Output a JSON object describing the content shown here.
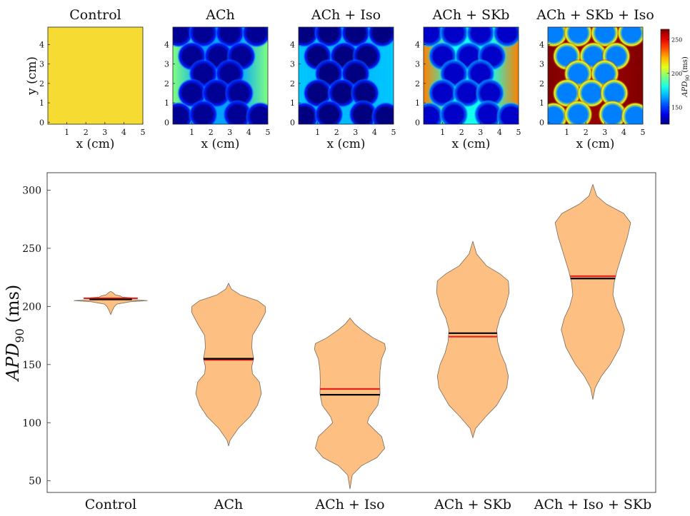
{
  "colors": {
    "violin_fill": "#fdbf82",
    "violin_edge": "#7a6a5a",
    "median_line": "#000000",
    "mean_line": "#e8221b",
    "axis": "#333333",
    "control_map": "#f6dc32"
  },
  "colorbar": {
    "label": "APD90 (ms)",
    "ticks": [
      150,
      200,
      250
    ],
    "range": [
      125,
      265
    ],
    "colormap": "jet"
  },
  "chart_data": [
    {
      "type": "heatmap",
      "title": "Control",
      "xlabel": "x (cm)",
      "ylabel": "y (cm)",
      "xticks": [
        1,
        2,
        3,
        4,
        5
      ],
      "yticks": [
        0,
        1,
        2,
        3,
        4
      ],
      "xlim": [
        0,
        5
      ],
      "ylim": [
        -0.1,
        4.9
      ],
      "pattern": "uniform",
      "base_value": 207,
      "blob_value": 207,
      "edge_value": 207,
      "centers": []
    },
    {
      "type": "heatmap",
      "title": "ACh",
      "xlabel": "x (cm)",
      "ylabel": "",
      "xticks": [
        1,
        2,
        3,
        4,
        5
      ],
      "yticks": [
        0,
        1,
        2,
        3,
        4
      ],
      "xlim": [
        0,
        5
      ],
      "ylim": [
        -0.1,
        4.9
      ],
      "pattern": "regions",
      "base_value": 165,
      "blob_value": 128,
      "edge_value": 195,
      "centers": [
        [
          0.3,
          4.6
        ],
        [
          1.6,
          4.6
        ],
        [
          3.0,
          4.6
        ],
        [
          4.4,
          4.6
        ],
        [
          1.0,
          3.4
        ],
        [
          2.4,
          3.4
        ],
        [
          3.6,
          3.4
        ],
        [
          1.6,
          2.5
        ],
        [
          3.0,
          2.5
        ],
        [
          1.0,
          1.5
        ],
        [
          2.3,
          1.5
        ],
        [
          3.5,
          1.5
        ],
        [
          0.3,
          0.3
        ],
        [
          1.6,
          0.4
        ],
        [
          3.4,
          0.4
        ],
        [
          4.6,
          0.3
        ]
      ]
    },
    {
      "type": "heatmap",
      "title": "ACh + Iso",
      "xlabel": "x (cm)",
      "ylabel": "",
      "xticks": [
        1,
        2,
        3,
        4,
        5
      ],
      "yticks": [
        0,
        1,
        2,
        3,
        4
      ],
      "xlim": [
        0,
        5
      ],
      "ylim": [
        -0.1,
        4.9
      ],
      "pattern": "regions",
      "base_value": 168,
      "blob_value": 125,
      "edge_value": 170,
      "centers": [
        [
          0.3,
          4.6
        ],
        [
          1.6,
          4.6
        ],
        [
          3.0,
          4.6
        ],
        [
          4.4,
          4.6
        ],
        [
          1.0,
          3.4
        ],
        [
          2.4,
          3.4
        ],
        [
          3.6,
          3.4
        ],
        [
          1.6,
          2.5
        ],
        [
          3.0,
          2.5
        ],
        [
          1.0,
          1.5
        ],
        [
          2.3,
          1.5
        ],
        [
          3.5,
          1.5
        ],
        [
          0.3,
          0.3
        ],
        [
          1.6,
          0.4
        ],
        [
          3.4,
          0.4
        ],
        [
          4.6,
          0.3
        ]
      ]
    },
    {
      "type": "heatmap",
      "title": "ACh + SKb",
      "xlabel": "x (cm)",
      "ylabel": "",
      "xticks": [
        1,
        2,
        3,
        4,
        5
      ],
      "yticks": [
        0,
        1,
        2,
        3,
        4
      ],
      "xlim": [
        0,
        5
      ],
      "ylim": [
        -0.1,
        4.9
      ],
      "pattern": "regions",
      "base_value": 180,
      "blob_value": 135,
      "edge_value": 230,
      "centers": [
        [
          0.3,
          4.6
        ],
        [
          1.6,
          4.6
        ],
        [
          3.0,
          4.6
        ],
        [
          4.4,
          4.6
        ],
        [
          1.0,
          3.4
        ],
        [
          2.4,
          3.4
        ],
        [
          3.6,
          3.4
        ],
        [
          1.6,
          2.5
        ],
        [
          3.0,
          2.5
        ],
        [
          1.0,
          1.5
        ],
        [
          2.3,
          1.5
        ],
        [
          3.5,
          1.5
        ],
        [
          0.3,
          0.3
        ],
        [
          1.6,
          0.4
        ],
        [
          3.4,
          0.4
        ],
        [
          4.6,
          0.3
        ]
      ]
    },
    {
      "type": "heatmap",
      "title": "ACh + SKb + Iso",
      "xlabel": "x (cm)",
      "ylabel": "",
      "xticks": [
        1,
        2,
        3,
        4,
        5
      ],
      "yticks": [
        0,
        1,
        2,
        3,
        4
      ],
      "xlim": [
        0,
        5
      ],
      "ylim": [
        -0.1,
        4.9
      ],
      "pattern": "regions",
      "base_value": 262,
      "blob_value": 160,
      "edge_value": 265,
      "centers": [
        [
          0.3,
          4.6
        ],
        [
          1.6,
          4.6
        ],
        [
          3.0,
          4.6
        ],
        [
          4.4,
          4.6
        ],
        [
          1.0,
          3.4
        ],
        [
          2.4,
          3.4
        ],
        [
          3.6,
          3.4
        ],
        [
          1.6,
          2.5
        ],
        [
          3.0,
          2.5
        ],
        [
          1.0,
          1.5
        ],
        [
          2.3,
          1.5
        ],
        [
          3.5,
          1.5
        ],
        [
          0.3,
          0.3
        ],
        [
          1.6,
          0.4
        ],
        [
          3.4,
          0.4
        ],
        [
          4.6,
          0.3
        ]
      ]
    },
    {
      "type": "violin",
      "title": "",
      "xlabel": "",
      "ylabel": "APD90 (ms)",
      "ylim": [
        40,
        315
      ],
      "yticks": [
        50,
        100,
        150,
        200,
        250,
        300
      ],
      "categories": [
        "Control",
        "ACh",
        "ACh + Iso",
        "ACh + SKb",
        "ACh + Iso + SKb"
      ],
      "series": [
        {
          "category": "Control",
          "median": 206,
          "mean": 207,
          "profile": [
            [
              193,
              0.0
            ],
            [
              197,
              0.05
            ],
            [
              200,
              0.1
            ],
            [
              202,
              0.16
            ],
            [
              204,
              0.5
            ],
            [
              205,
              0.95
            ],
            [
              206,
              0.35
            ],
            [
              207,
              0.7
            ],
            [
              208,
              0.3
            ],
            [
              209,
              0.25
            ],
            [
              210,
              0.12
            ],
            [
              212,
              0.05
            ],
            [
              213,
              0.0
            ]
          ]
        },
        {
          "category": "ACh",
          "median": 155,
          "mean": 154,
          "profile": [
            [
              80,
              0.0
            ],
            [
              85,
              0.04
            ],
            [
              95,
              0.25
            ],
            [
              105,
              0.55
            ],
            [
              115,
              0.75
            ],
            [
              125,
              0.85
            ],
            [
              135,
              0.8
            ],
            [
              142,
              0.62
            ],
            [
              148,
              0.6
            ],
            [
              155,
              0.65
            ],
            [
              165,
              0.6
            ],
            [
              175,
              0.62
            ],
            [
              185,
              0.8
            ],
            [
              195,
              0.96
            ],
            [
              200,
              0.95
            ],
            [
              205,
              0.75
            ],
            [
              210,
              0.3
            ],
            [
              215,
              0.07
            ],
            [
              220,
              0.0
            ]
          ]
        },
        {
          "category": "ACh + Iso",
          "median": 124,
          "mean": 129,
          "profile": [
            [
              43,
              0.0
            ],
            [
              55,
              0.06
            ],
            [
              63,
              0.3
            ],
            [
              70,
              0.7
            ],
            [
              78,
              0.9
            ],
            [
              88,
              0.82
            ],
            [
              95,
              0.6
            ],
            [
              100,
              0.45
            ],
            [
              105,
              0.5
            ],
            [
              115,
              0.72
            ],
            [
              125,
              0.78
            ],
            [
              135,
              0.77
            ],
            [
              145,
              0.78
            ],
            [
              155,
              0.82
            ],
            [
              163,
              0.92
            ],
            [
              168,
              0.9
            ],
            [
              173,
              0.6
            ],
            [
              180,
              0.3
            ],
            [
              185,
              0.12
            ],
            [
              190,
              0.0
            ]
          ]
        },
        {
          "category": "ACh + SKb",
          "median": 177,
          "mean": 174,
          "profile": [
            [
              87,
              0.0
            ],
            [
              95,
              0.07
            ],
            [
              105,
              0.33
            ],
            [
              115,
              0.62
            ],
            [
              130,
              0.88
            ],
            [
              140,
              0.92
            ],
            [
              150,
              0.85
            ],
            [
              160,
              0.72
            ],
            [
              170,
              0.64
            ],
            [
              180,
              0.62
            ],
            [
              190,
              0.7
            ],
            [
              200,
              0.85
            ],
            [
              212,
              0.94
            ],
            [
              222,
              0.92
            ],
            [
              228,
              0.7
            ],
            [
              235,
              0.35
            ],
            [
              245,
              0.1
            ],
            [
              256,
              0.0
            ]
          ]
        },
        {
          "category": "ACh + Iso + SKb",
          "median": 224,
          "mean": 226,
          "profile": [
            [
              120,
              0.0
            ],
            [
              130,
              0.06
            ],
            [
              140,
              0.22
            ],
            [
              150,
              0.45
            ],
            [
              165,
              0.7
            ],
            [
              180,
              0.82
            ],
            [
              190,
              0.74
            ],
            [
              200,
              0.6
            ],
            [
              210,
              0.52
            ],
            [
              220,
              0.55
            ],
            [
              230,
              0.62
            ],
            [
              245,
              0.76
            ],
            [
              260,
              0.9
            ],
            [
              272,
              0.98
            ],
            [
              280,
              0.8
            ],
            [
              288,
              0.35
            ],
            [
              295,
              0.1
            ],
            [
              305,
              0.0
            ]
          ]
        }
      ]
    }
  ]
}
